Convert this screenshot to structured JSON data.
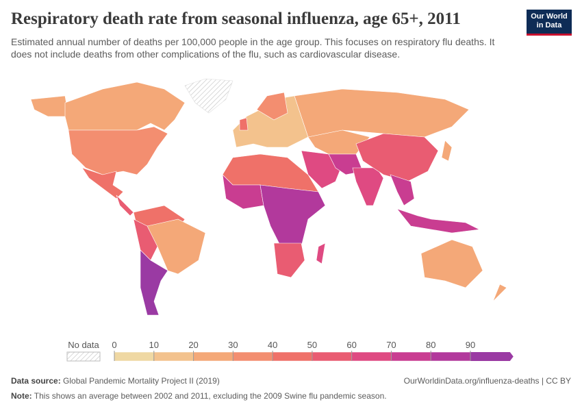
{
  "header": {
    "title": "Respiratory death rate from seasonal influenza, age 65+, 2011",
    "subtitle": "Estimated annual number of deaths per 100,000 people in the age group. This focuses on respiratory flu deaths. It does not include deaths from other complications of the flu, such as cardiovascular disease.",
    "logo_line1": "Our World",
    "logo_line2": "in Data"
  },
  "legend": {
    "no_data": "No data",
    "ticks": [
      0,
      10,
      20,
      30,
      40,
      50,
      60,
      70,
      80,
      90
    ],
    "colors": [
      "#efd8a3",
      "#f3c28d",
      "#f4a878",
      "#f38e70",
      "#ef7169",
      "#e95c72",
      "#df4a82",
      "#c93d91",
      "#b2399c",
      "#9a3aa3"
    ]
  },
  "footer": {
    "source_label": "Data source:",
    "source": "Global Pandemic Mortality Project II (2019)",
    "url": "OurWorldinData.org/influenza-deaths | CC BY",
    "note_label": "Note:",
    "note": "This shows an average between 2002 and 2011, excluding the 2009 Swine flu pandemic season."
  }
}
